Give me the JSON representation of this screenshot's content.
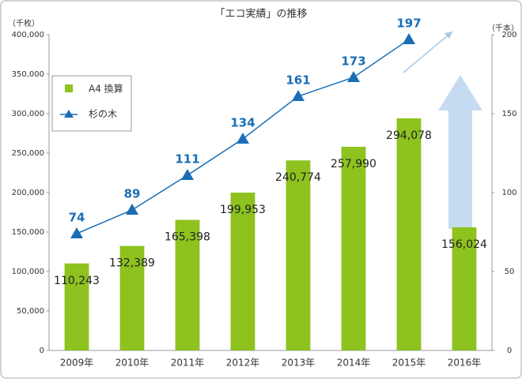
{
  "chart_data": {
    "type": "bar",
    "title": "「エコ実績」の推移",
    "y_label": "（千枚）",
    "y2_label": "（千本）",
    "categories": [
      "2009年",
      "2010年",
      "2011年",
      "2012年",
      "2013年",
      "2014年",
      "2015年",
      "2016年"
    ],
    "series": [
      {
        "name": "A4 換算",
        "type": "bar",
        "color": "#8dc21f",
        "values": [
          110243,
          132389,
          165398,
          199953,
          240774,
          257990,
          294078,
          156024
        ],
        "value_labels": [
          "110,243",
          "132,389",
          "165,398",
          "199,953",
          "240,774",
          "257,990",
          "294,078",
          "156,024"
        ]
      },
      {
        "name": "杉の木",
        "type": "line",
        "axis": "y2",
        "color": "#1a6eb5",
        "values": [
          74,
          89,
          111,
          134,
          161,
          173,
          197,
          null
        ]
      }
    ],
    "ylim": [
      0,
      400000
    ],
    "yticks": [
      0,
      {
        "value": 50000,
        "label": "50,000"
      },
      {
        "value": 100000,
        "label": "100,000"
      },
      {
        "value": 150000,
        "label": "150,000"
      },
      {
        "value": 200000,
        "label": "200,000"
      },
      {
        "value": 250000,
        "label": "250,000"
      },
      {
        "value": 300000,
        "label": "300,000"
      },
      {
        "value": 350000,
        "label": "350,000"
      },
      {
        "value": 400000,
        "label": "400,000"
      }
    ],
    "y2lim": [
      0,
      200
    ],
    "y2ticks": [
      0,
      50,
      100,
      150,
      200
    ],
    "grid": false,
    "legend": "upper left"
  }
}
